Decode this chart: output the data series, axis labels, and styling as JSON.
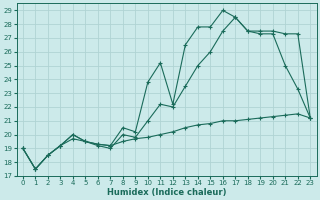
{
  "xlabel": "Humidex (Indice chaleur)",
  "bg_color": "#cceaea",
  "grid_color": "#b0d4d4",
  "line_color": "#1a6b5a",
  "xlim": [
    -0.5,
    23.5
  ],
  "ylim": [
    17,
    29.5
  ],
  "xticks": [
    0,
    1,
    2,
    3,
    4,
    5,
    6,
    7,
    8,
    9,
    10,
    11,
    12,
    13,
    14,
    15,
    16,
    17,
    18,
    19,
    20,
    21,
    22,
    23
  ],
  "yticks": [
    17,
    18,
    19,
    20,
    21,
    22,
    23,
    24,
    25,
    26,
    27,
    28,
    29
  ],
  "series1_x": [
    0,
    1,
    2,
    3,
    4,
    5,
    6,
    7,
    8,
    9,
    10,
    11,
    12,
    13,
    14,
    15,
    16,
    17,
    18,
    19,
    20,
    21,
    22,
    23
  ],
  "series1_y": [
    19.0,
    17.5,
    18.5,
    19.2,
    20.0,
    19.5,
    19.3,
    19.2,
    20.5,
    20.2,
    23.8,
    25.2,
    22.2,
    26.5,
    27.8,
    27.8,
    29.0,
    28.5,
    27.5,
    27.3,
    27.3,
    25.0,
    23.3,
    21.2
  ],
  "series2_x": [
    0,
    1,
    2,
    3,
    4,
    5,
    6,
    7,
    8,
    9,
    10,
    11,
    12,
    13,
    14,
    15,
    16,
    17,
    18,
    19,
    20,
    21,
    22,
    23
  ],
  "series2_y": [
    19.0,
    17.5,
    18.5,
    19.2,
    20.0,
    19.5,
    19.2,
    19.0,
    20.0,
    19.8,
    21.0,
    22.2,
    22.0,
    23.5,
    25.0,
    26.0,
    27.5,
    28.5,
    27.5,
    27.5,
    27.5,
    27.3,
    27.3,
    21.2
  ],
  "series3_x": [
    0,
    1,
    2,
    3,
    4,
    5,
    6,
    7,
    8,
    9,
    10,
    11,
    12,
    13,
    14,
    15,
    16,
    17,
    18,
    19,
    20,
    21,
    22,
    23
  ],
  "series3_y": [
    19.0,
    17.5,
    18.5,
    19.2,
    19.7,
    19.5,
    19.3,
    19.2,
    19.5,
    19.7,
    19.8,
    20.0,
    20.2,
    20.5,
    20.7,
    20.8,
    21.0,
    21.0,
    21.1,
    21.2,
    21.3,
    21.4,
    21.5,
    21.2
  ]
}
